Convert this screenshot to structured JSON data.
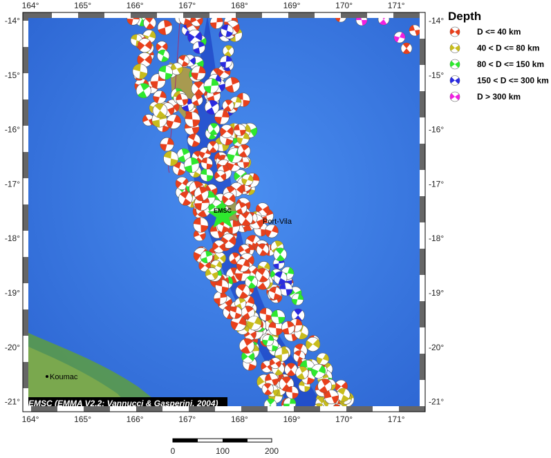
{
  "map": {
    "lon_labels": [
      "164°",
      "165°",
      "166°",
      "167°",
      "168°",
      "169°",
      "170°",
      "171°"
    ],
    "lat_labels": [
      "-14°",
      "-15°",
      "-16°",
      "-17°",
      "-18°",
      "-19°",
      "-20°",
      "-21°"
    ],
    "places": {
      "koumac": "Koumac",
      "port_vila": "Port-Vila",
      "emsc": "EMSC"
    },
    "credit": "EMSC (EMMA V2.2; Vannucci & Gasperini, 2004)"
  },
  "legend": {
    "title": "Depth",
    "items": [
      {
        "label": "D <= 40 km",
        "color": "#e8401c"
      },
      {
        "label": "40 < D <= 80 km",
        "color": "#c8bc1c"
      },
      {
        "label": "80 < D <= 150 km",
        "color": "#2ee82e"
      },
      {
        "label": "150 < D <= 300 km",
        "color": "#2a2ae0"
      },
      {
        "label": "D > 300 km",
        "color": "#f020e0"
      }
    ]
  },
  "scale_bar": {
    "labels": [
      "0",
      "100",
      "200"
    ]
  }
}
